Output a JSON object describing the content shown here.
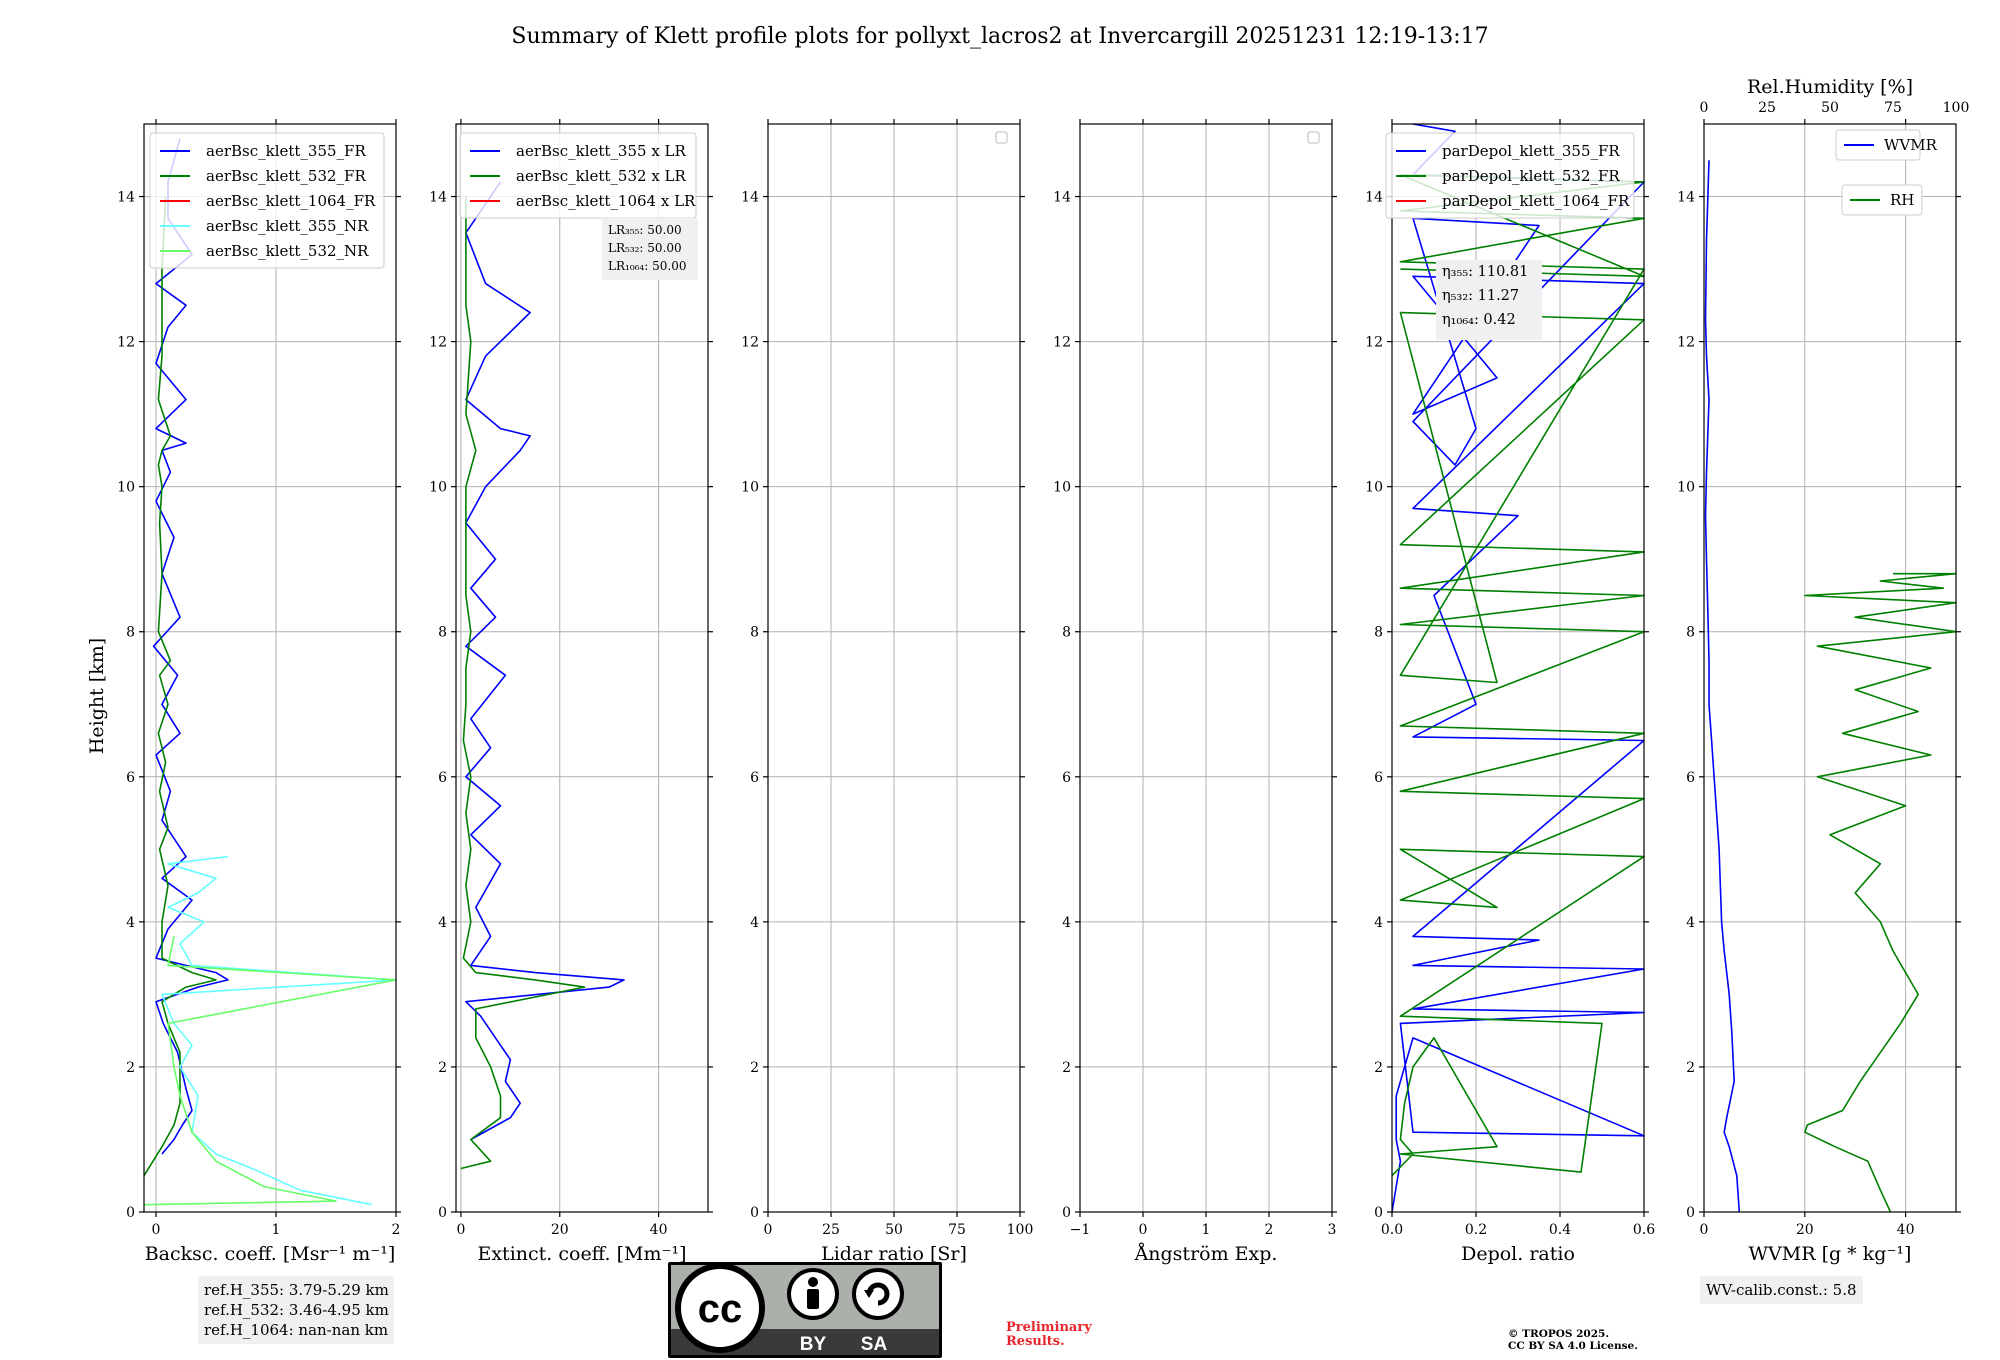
{
  "title": "Summary of Klett profile plots for pollyxt_lacros2 at Invercargill 20251231 12:19-13:17",
  "ylabel": "Height [km]",
  "colors": {
    "b355": "#0000ff",
    "b532": "#008000",
    "b1064": "#ff0000",
    "nr355": "#66ffff",
    "nr532": "#66ff66"
  },
  "chart_data": [
    {
      "type": "line",
      "id": "bsc",
      "xlabel": "Backsc. coeff. [Msr⁻¹ m⁻¹]",
      "xlim": [
        -0.1,
        2
      ],
      "ylim": [
        0,
        15
      ],
      "xticks": [
        "0",
        "1",
        "2"
      ],
      "yticks": [
        "0",
        "2",
        "4",
        "6",
        "8",
        "10",
        "12",
        "14"
      ],
      "legend": [
        "aerBsc_klett_355_FR",
        "aerBsc_klett_532_FR",
        "aerBsc_klett_1064_FR",
        "aerBsc_klett_355_NR",
        "aerBsc_klett_532_NR"
      ],
      "series": [
        {
          "name": "aerBsc_klett_355_FR",
          "color": "#0000ff",
          "x": [
            0.05,
            0.15,
            0.22,
            0.3,
            0.25,
            0.18,
            0.06,
            0.0,
            0.35,
            0.6,
            0.5,
            0.0,
            0.1,
            0.3,
            0.05,
            0.25,
            0.05,
            0.12,
            0.0,
            0.2,
            0.05,
            0.18,
            -0.02,
            0.2,
            0.05,
            0.15,
            0.0,
            0.12,
            0.05,
            0.25,
            0.0,
            0.25,
            0.0,
            0.1,
            0.25,
            0.0,
            0.3,
            0.1,
            0.1,
            0.2
          ],
          "y": [
            0.8,
            1.0,
            1.2,
            1.4,
            1.7,
            2.2,
            2.6,
            2.9,
            3.1,
            3.2,
            3.3,
            3.5,
            3.9,
            4.3,
            4.6,
            4.9,
            5.4,
            5.8,
            6.3,
            6.6,
            7.0,
            7.4,
            7.8,
            8.2,
            8.8,
            9.3,
            9.8,
            10.2,
            10.5,
            10.6,
            10.8,
            11.2,
            11.7,
            12.2,
            12.5,
            12.8,
            13.2,
            13.7,
            14.2,
            14.8
          ]
        },
        {
          "name": "aerBsc_klett_532_FR",
          "color": "#008000",
          "x": [
            -0.1,
            0.05,
            0.15,
            0.2,
            0.2,
            0.2,
            0.1,
            0.05,
            0.25,
            0.5,
            0.3,
            0.05,
            0.05,
            0.1,
            0.03,
            0.1,
            0.03,
            0.08,
            0.02,
            0.1,
            0.03,
            0.12,
            0.02,
            0.05,
            0.03,
            0.05,
            0.02,
            0.05,
            0.12,
            0.02,
            0.05,
            0.05,
            0.05,
            0.08
          ],
          "y": [
            0.5,
            0.9,
            1.2,
            1.5,
            1.9,
            2.2,
            2.6,
            2.9,
            3.1,
            3.2,
            3.3,
            3.5,
            4.0,
            4.5,
            5.0,
            5.3,
            5.8,
            6.2,
            6.6,
            7.0,
            7.4,
            7.6,
            8.0,
            8.8,
            9.5,
            10.0,
            10.3,
            10.5,
            10.7,
            11.2,
            11.8,
            12.3,
            13.0,
            14.0
          ]
        },
        {
          "name": "aerBsc_klett_355_NR",
          "color": "#66ffff",
          "x": [
            1.8,
            1.2,
            0.8,
            0.5,
            0.3,
            0.35,
            0.2,
            0.3,
            0.15,
            0.05,
            2.0,
            0.3,
            0.2,
            0.4,
            0.1,
            0.35,
            0.5,
            0.1,
            0.6
          ],
          "y": [
            0.1,
            0.3,
            0.6,
            0.8,
            1.1,
            1.6,
            2.0,
            2.3,
            2.6,
            3.0,
            3.2,
            3.4,
            3.7,
            4.0,
            4.2,
            4.4,
            4.6,
            4.8,
            4.9
          ]
        },
        {
          "name": "aerBsc_klett_532_NR",
          "color": "#66ff66",
          "x": [
            -0.1,
            1.5,
            0.9,
            0.5,
            0.3,
            0.2,
            0.15,
            0.1,
            2.0,
            0.1,
            0.15
          ],
          "y": [
            0.1,
            0.15,
            0.35,
            0.7,
            1.1,
            1.6,
            2.0,
            2.6,
            3.2,
            3.4,
            3.8
          ]
        }
      ],
      "annotation": []
    },
    {
      "type": "line",
      "id": "ext",
      "xlabel": "Extinct. coeff. [Mm⁻¹]",
      "xlim": [
        -1,
        50
      ],
      "ylim": [
        0,
        15
      ],
      "xticks": [
        "0",
        "20",
        "40"
      ],
      "yticks": [
        "0",
        "2",
        "4",
        "6",
        "8",
        "10",
        "12",
        "14"
      ],
      "legend": [
        "aerBsc_klett_355 x LR",
        "aerBsc_klett_532 x LR",
        "aerBsc_klett_1064 x LR"
      ],
      "series": [
        {
          "name": "aerBsc_klett_355 x LR",
          "color": "#0000ff",
          "x": [
            2,
            10,
            12,
            9,
            10,
            7,
            4,
            1,
            30,
            33,
            15,
            2,
            6,
            3,
            8,
            2,
            8,
            1,
            6,
            2,
            9,
            1,
            7,
            2,
            7,
            1,
            5,
            12,
            14,
            8,
            1,
            5,
            14,
            5,
            1,
            8
          ],
          "y": [
            1.0,
            1.3,
            1.5,
            1.8,
            2.1,
            2.4,
            2.7,
            2.9,
            3.1,
            3.2,
            3.3,
            3.4,
            3.8,
            4.2,
            4.8,
            5.2,
            5.6,
            6.0,
            6.4,
            6.8,
            7.4,
            7.8,
            8.2,
            8.6,
            9.0,
            9.5,
            10.0,
            10.5,
            10.7,
            10.8,
            11.2,
            11.8,
            12.4,
            12.8,
            13.5,
            14.2
          ]
        },
        {
          "name": "aerBsc_klett_532 x LR",
          "color": "#008000",
          "x": [
            0,
            6,
            2,
            8,
            8,
            6,
            3,
            3,
            25,
            15,
            3,
            0.5,
            2,
            1,
            2,
            1,
            2,
            0.5,
            1,
            1,
            2,
            1,
            1,
            1,
            1,
            3,
            1,
            2,
            1,
            1,
            1
          ],
          "y": [
            0.6,
            0.7,
            1.0,
            1.3,
            1.6,
            2.0,
            2.4,
            2.8,
            3.1,
            3.2,
            3.3,
            3.5,
            4.0,
            4.5,
            5.0,
            5.5,
            6.0,
            6.5,
            7.0,
            7.5,
            8.0,
            8.5,
            9.0,
            9.5,
            10.0,
            10.5,
            11.0,
            12.0,
            12.5,
            13.0,
            14.0
          ]
        }
      ],
      "annotation": [
        "LR₃₅₅: 50.00",
        "LR₅₃₂: 50.00",
        "LR₁₀₆₄: 50.00"
      ]
    },
    {
      "type": "line",
      "id": "lr",
      "xlabel": "Lidar ratio [Sr]",
      "xlim": [
        0,
        100
      ],
      "ylim": [
        0,
        15
      ],
      "xticks": [
        "0",
        "25",
        "50",
        "75",
        "100"
      ],
      "yticks": [
        "0",
        "2",
        "4",
        "6",
        "8",
        "10",
        "12",
        "14"
      ],
      "legend": [],
      "series": [],
      "annotation": []
    },
    {
      "type": "line",
      "id": "ang",
      "xlabel": "Ångström Exp.",
      "xlim": [
        -1,
        3
      ],
      "ylim": [
        0,
        15
      ],
      "xticks": [
        "−1",
        "0",
        "1",
        "2",
        "3"
      ],
      "yticks": [
        "0",
        "2",
        "4",
        "6",
        "8",
        "10",
        "12",
        "14"
      ],
      "legend": [],
      "series": [],
      "annotation": []
    },
    {
      "type": "line",
      "id": "depol",
      "xlabel": "Depol. ratio",
      "xlim": [
        0,
        0.6
      ],
      "ylim": [
        0,
        15
      ],
      "xticks": [
        "0.0",
        "0.2",
        "0.4",
        "0.6"
      ],
      "yticks": [
        "0",
        "2",
        "4",
        "6",
        "8",
        "10",
        "12",
        "14"
      ],
      "legend": [
        "parDepol_klett_355_FR",
        "parDepol_klett_532_FR",
        "parDepol_klett_1064_FR"
      ],
      "series": [
        {
          "name": "parDepol_klett_355_FR",
          "color": "#0000ff",
          "x": [
            0.0,
            0.02,
            0.01,
            0.01,
            0.05,
            0.6,
            0.05,
            0.02,
            0.6,
            0.05,
            0.6,
            0.05,
            0.35,
            0.05,
            0.6,
            0.05,
            0.2,
            0.1,
            0.3,
            0.05,
            0.6,
            0.05,
            0.25,
            0.05,
            0.35,
            0.05,
            0.2,
            0.15,
            0.05,
            0.6,
            0.05,
            0.15,
            0.05
          ],
          "y": [
            0.0,
            0.7,
            1.0,
            1.6,
            2.4,
            1.05,
            1.1,
            2.6,
            2.75,
            2.8,
            3.35,
            3.4,
            3.75,
            3.8,
            6.5,
            6.55,
            7.0,
            8.5,
            9.6,
            9.7,
            12.8,
            12.9,
            11.5,
            11.0,
            13.6,
            13.7,
            10.8,
            10.3,
            10.9,
            14.2,
            14.3,
            14.9,
            15.0
          ]
        },
        {
          "name": "parDepol_klett_532_FR",
          "color": "#008000",
          "x": [
            0.0,
            0.05,
            0.02,
            0.03,
            0.05,
            0.1,
            0.25,
            0.02,
            0.45,
            0.5,
            0.02,
            0.6,
            0.02,
            0.25,
            0.02,
            0.6,
            0.02,
            0.6,
            0.02,
            0.6,
            0.02,
            0.6,
            0.02,
            0.6,
            0.02,
            0.6,
            0.02,
            0.25,
            0.02,
            0.6,
            0.02,
            0.6,
            0.02,
            0.6,
            0.02,
            0.6,
            0.02
          ],
          "y": [
            0.5,
            0.8,
            1.0,
            1.5,
            2.0,
            2.4,
            0.9,
            0.8,
            0.55,
            2.6,
            2.7,
            4.9,
            5.0,
            4.2,
            4.3,
            5.7,
            5.8,
            6.6,
            6.7,
            8.0,
            8.1,
            8.5,
            8.6,
            9.1,
            9.2,
            12.3,
            12.4,
            7.3,
            7.4,
            13.0,
            13.1,
            13.7,
            13.8,
            14.2,
            14.3,
            12.9,
            13.0
          ]
        }
      ],
      "annotation": [
        "η₃₅₅: 110.81",
        "η₅₃₂: 11.27",
        "η₁₀₆₄: 0.42"
      ]
    },
    {
      "type": "line",
      "id": "wv",
      "xlabel": "WVMR [g * kg⁻¹]",
      "x2label": "Rel.Humidity [%]",
      "xlim": [
        0,
        50
      ],
      "x2lim": [
        0,
        100
      ],
      "ylim": [
        0,
        15
      ],
      "xticks": [
        "0",
        "20",
        "40"
      ],
      "x2ticks": [
        "0",
        "25",
        "50",
        "75",
        "100"
      ],
      "yticks": [
        "0",
        "2",
        "4",
        "6",
        "8",
        "10",
        "12",
        "14"
      ],
      "legend": [
        "WVMR",
        "RH"
      ],
      "series": [
        {
          "name": "WVMR",
          "color": "#0000ff",
          "x": [
            7,
            6.5,
            5,
            4,
            4.5,
            6,
            5.5,
            5,
            4,
            3.5,
            3,
            2,
            1.5,
            1,
            1,
            0.8,
            0.5,
            0.3,
            0.5,
            1,
            0.5,
            0.3,
            0.5,
            1
          ],
          "y": [
            0.0,
            0.5,
            0.9,
            1.1,
            1.3,
            1.8,
            2.5,
            3.0,
            3.6,
            4.0,
            5.0,
            6.0,
            6.5,
            7.0,
            7.6,
            8.2,
            9.0,
            9.6,
            10.2,
            11.2,
            11.8,
            12.3,
            13.4,
            14.5
          ]
        },
        {
          "name": "RH",
          "color": "#008000",
          "x": [
            74,
            70,
            65,
            52,
            40,
            41,
            55,
            62,
            70,
            78,
            85,
            80,
            75,
            70,
            60,
            70,
            50,
            80,
            45,
            90,
            55,
            85,
            60,
            90,
            45,
            100,
            60,
            100,
            40,
            95,
            70,
            85,
            100,
            75
          ],
          "y": [
            0.0,
            0.3,
            0.7,
            0.9,
            1.1,
            1.2,
            1.4,
            1.8,
            2.2,
            2.6,
            3.0,
            3.3,
            3.6,
            4.0,
            4.4,
            4.8,
            5.2,
            5.6,
            6.0,
            6.3,
            6.6,
            6.9,
            7.2,
            7.5,
            7.8,
            8.0,
            8.2,
            8.4,
            8.5,
            8.6,
            8.7,
            8.75,
            8.8,
            8.8
          ]
        }
      ],
      "annotation": []
    }
  ],
  "ref_heights": [
    "ref.H_355: 3.79-5.29 km",
    "ref.H_532: 3.46-4.95 km",
    "ref.H_1064: nan-nan km"
  ],
  "wv_calib": "WV-calib.const.: 5.8",
  "cc_badge": {
    "by": "BY",
    "sa": "SA"
  },
  "preliminary": [
    "Preliminary",
    "Results."
  ],
  "copyright": [
    "© TROPOS 2025.",
    "CC BY SA 4.0 License."
  ]
}
